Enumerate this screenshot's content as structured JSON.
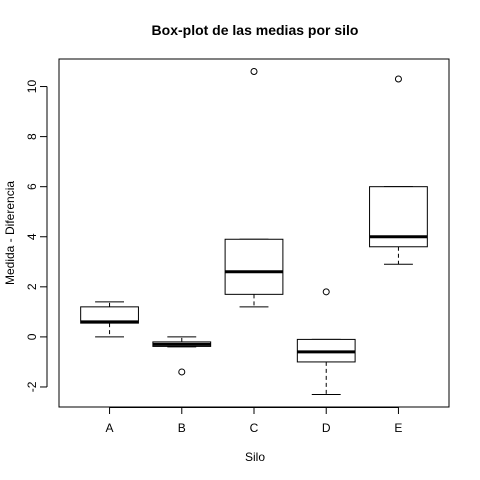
{
  "chart_data": {
    "type": "boxplot",
    "title": "Box-plot de las medias por silo",
    "xlabel": "Silo",
    "ylabel": "Medida - Diferencia",
    "ylim": [
      -2.8,
      11.1
    ],
    "y_ticks": [
      -2,
      0,
      2,
      4,
      6,
      8,
      10
    ],
    "y_tick_labels": [
      "-2",
      "0",
      "2",
      "4",
      "6",
      "8",
      "10"
    ],
    "categories": [
      "A",
      "B",
      "C",
      "D",
      "E"
    ],
    "boxes": [
      {
        "category": "A",
        "whisker_low": 0.0,
        "q1": 0.55,
        "median": 0.6,
        "q3": 1.2,
        "whisker_high": 1.4,
        "outliers": []
      },
      {
        "category": "B",
        "whisker_low": -0.4,
        "q1": -0.38,
        "median": -0.3,
        "q3": -0.2,
        "whisker_high": 0.0,
        "outliers": [
          -1.4
        ]
      },
      {
        "category": "C",
        "whisker_low": 1.2,
        "q1": 1.7,
        "median": 2.6,
        "q3": 3.9,
        "whisker_high": 3.9,
        "outliers": [
          10.6
        ]
      },
      {
        "category": "D",
        "whisker_low": -2.3,
        "q1": -1.0,
        "median": -0.6,
        "q3": -0.1,
        "whisker_high": -0.1,
        "outliers": [
          1.8
        ]
      },
      {
        "category": "E",
        "whisker_low": 2.9,
        "q1": 3.6,
        "median": 4.0,
        "q3": 6.0,
        "whisker_high": 6.0,
        "outliers": [
          10.3
        ]
      }
    ],
    "colors": {
      "box_fill": "#ffffff",
      "stroke": "#000000"
    },
    "grid": false,
    "legend": "none"
  }
}
